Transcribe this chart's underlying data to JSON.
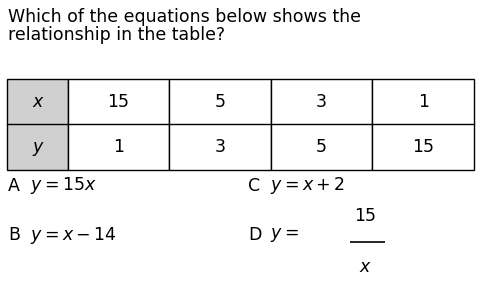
{
  "title_line1": "Which of the equations below shows the",
  "title_line2": "relationship in the table?",
  "title_fontsize": 12.5,
  "table": {
    "row1": [
      "x",
      "15",
      "5",
      "3",
      "1"
    ],
    "row2": [
      "y",
      "1",
      "3",
      "5",
      "15"
    ],
    "header_bg": "#d0d0d0",
    "cell_bg": "#ffffff",
    "font_size": 12.5
  },
  "options_fontsize": 12.5,
  "bg_color": "#ffffff",
  "text_color": "#000000"
}
